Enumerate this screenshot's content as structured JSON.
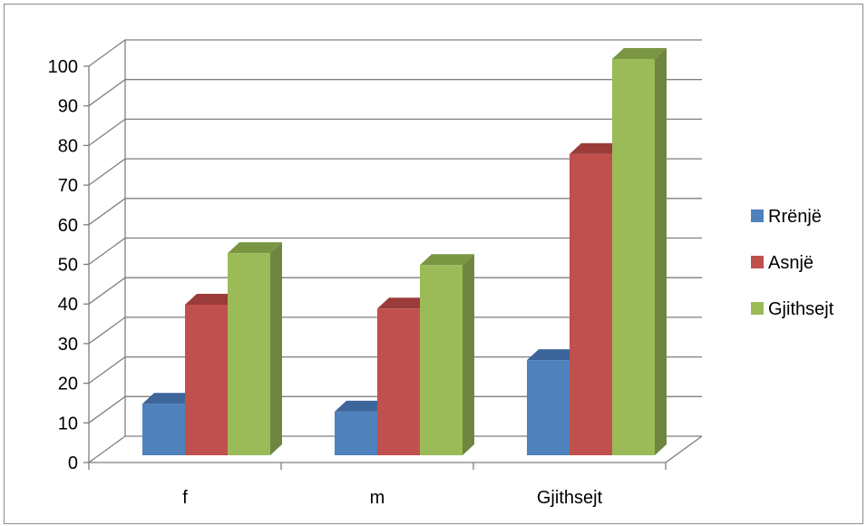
{
  "chart_data": {
    "type": "bar",
    "categories": [
      "f",
      "m",
      "Gjithsejt"
    ],
    "series": [
      {
        "name": "Rrënjë",
        "color": "#4f81bd",
        "side_color": "#3a6291",
        "top_color": "#3c659a",
        "values": [
          13,
          11,
          24
        ]
      },
      {
        "name": "Asnjë",
        "color": "#c0504d",
        "side_color": "#8c3836",
        "top_color": "#9a3c3a",
        "values": [
          38,
          37,
          76
        ]
      },
      {
        "name": "Gjithsejt",
        "color": "#9bbb59",
        "side_color": "#6e8740",
        "top_color": "#7a9642",
        "values": [
          51,
          48,
          100
        ]
      }
    ],
    "ylim": [
      0,
      100
    ],
    "yticks": [
      0,
      10,
      20,
      30,
      40,
      50,
      60,
      70,
      80,
      90,
      100
    ],
    "grid": true,
    "legend_position": "right",
    "title": "",
    "xlabel": "",
    "ylabel": ""
  }
}
